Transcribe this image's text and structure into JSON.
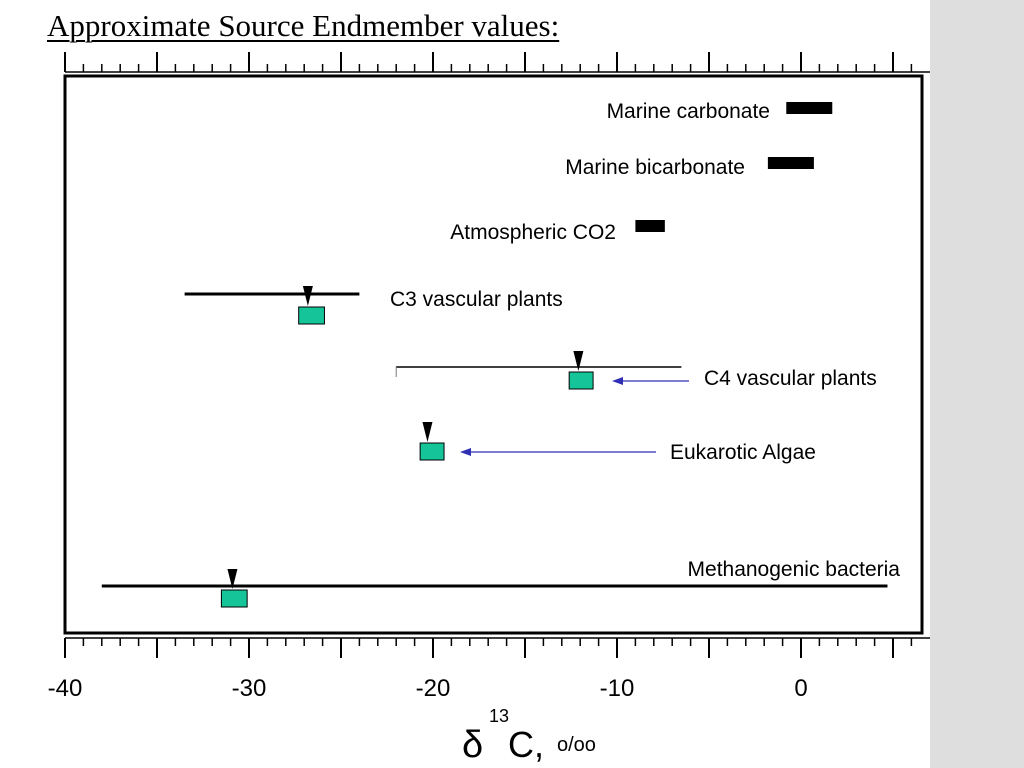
{
  "slide": {
    "title": "Approximate Source Endmember values:"
  },
  "colors": {
    "box_fill": "#16c49a",
    "arrow": "#2f2fb5",
    "ink": "#000000",
    "side_panel": "#dedede"
  },
  "chart_data": {
    "type": "range-plot",
    "title": "Approximate Source Endmember values:",
    "xlabel": {
      "symbol": "δ",
      "superscript": "13",
      "element": "C,",
      "unit": "o/oo"
    },
    "xlim": [
      -42,
      7
    ],
    "xticks": [
      -40,
      -30,
      -20,
      -10,
      0
    ],
    "tick_labels": [
      "-40",
      "-30",
      "-20",
      "-10",
      "0"
    ],
    "grid": false,
    "sources": [
      {
        "label": "Marine carbonate",
        "range": [
          -0.8,
          1.7
        ],
        "style": "bar"
      },
      {
        "label": "Marine bicarbonate",
        "range": [
          -1.8,
          0.7
        ],
        "style": "bar"
      },
      {
        "label": "Atmospheric CO2",
        "range": [
          -9,
          -7.4
        ],
        "style": "bar"
      },
      {
        "label": "C3 vascular plants",
        "range": [
          -33.5,
          -24
        ],
        "mean": -26.8,
        "box": [
          -27.3,
          -25.9
        ],
        "style": "line-box"
      },
      {
        "label": "C4 vascular plants",
        "range": [
          -22,
          -6.5
        ],
        "mean": -12.1,
        "box": [
          -12.6,
          -11.3
        ],
        "style": "line-box",
        "pointer": true
      },
      {
        "label": "Eukarotic Algae",
        "mean": -20.3,
        "box": [
          -20.7,
          -19.4
        ],
        "style": "box",
        "pointer": true
      },
      {
        "label": "Methanogenic bacteria",
        "range": [
          -38,
          4.7
        ],
        "mean": -30.9,
        "box": [
          -31.5,
          -30.1
        ],
        "style": "line-box"
      }
    ]
  }
}
